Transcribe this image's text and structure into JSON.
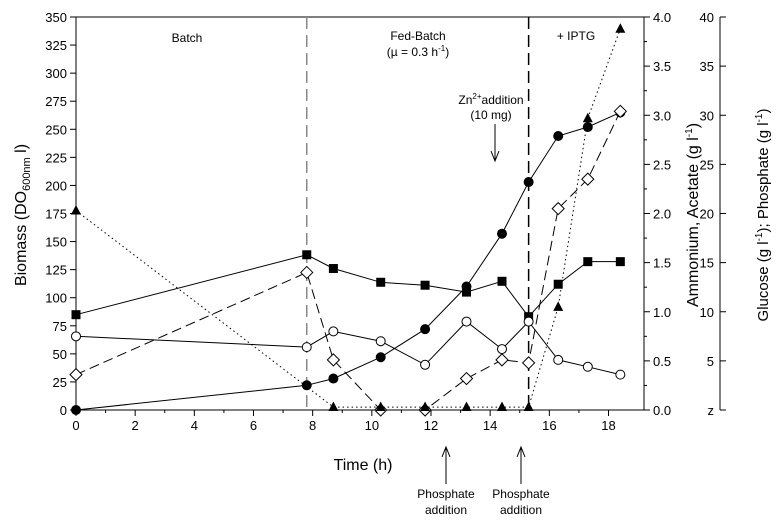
{
  "chart_data": {
    "type": "line",
    "xlabel": "Time (h)",
    "x_ticks": [
      "0",
      "2",
      "4",
      "6",
      "8",
      "10",
      "12",
      "14",
      "16",
      "18"
    ],
    "xlim": [
      0,
      19.2
    ],
    "y_left": {
      "label_main": "Biomass (DO",
      "label_sub": "600nm",
      "label_end": " l)",
      "lim": [
        0,
        350
      ],
      "ticks": [
        "0",
        "25",
        "50",
        "75",
        "100",
        "125",
        "150",
        "175",
        "200",
        "225",
        "250",
        "275",
        "300",
        "325",
        "350"
      ]
    },
    "y_right1": {
      "label": "Ammonium, Acetate (g l",
      "label_sup": "-1",
      "label_end": ")",
      "lim": [
        0,
        4.0
      ],
      "ticks": [
        "0.0",
        "0.5",
        "1.0",
        "1.5",
        "2.0",
        "2.5",
        "3.0",
        "3.5",
        "4.0"
      ]
    },
    "y_right2": {
      "label": "Glucose (g l",
      "label_sup": "-1",
      "label_mid": "); Phosphate (g l",
      "label_sup2": "-1",
      "label_end": ")",
      "lim": [
        0,
        40
      ],
      "ticks": [
        "z",
        "5",
        "10",
        "15",
        "20",
        "25",
        "30",
        "35",
        "40"
      ]
    },
    "phase_lines_x": [
      7.8,
      15.3
    ],
    "phases": [
      {
        "label": "Batch",
        "sub": ""
      },
      {
        "label": "Fed-Batch",
        "sub": "(µ = 0.3 h",
        "sub_sup": "-1",
        "sub_end": ")"
      },
      {
        "label": "+ IPTG",
        "sub": ""
      }
    ],
    "annotations": {
      "zn_line1": "Zn",
      "zn_sup": "2+",
      "zn_line1_end": "addition",
      "zn_line2": "(10 mg)",
      "zn_x": 14.3,
      "phosphate_label_1": "Phosphate",
      "phosphate_label_2": "addition",
      "phosphate_x": [
        11.8,
        15.3
      ]
    },
    "series": [
      {
        "marker": "filled-circle",
        "line": "solid",
        "axis": "left",
        "x": [
          0,
          7.8,
          8.7,
          10.3,
          11.8,
          13.2,
          14.4,
          15.3,
          16.3,
          17.3,
          18.4
        ],
        "y": [
          0,
          22,
          28,
          47,
          72,
          110,
          157,
          203,
          244,
          252,
          265
        ]
      },
      {
        "marker": "filled-square",
        "line": "solid",
        "axis": "right1",
        "x": [
          0,
          7.8,
          8.7,
          10.3,
          11.8,
          13.2,
          14.4,
          15.3,
          16.3,
          17.3,
          18.4
        ],
        "y": [
          0.97,
          1.58,
          1.44,
          1.3,
          1.27,
          1.2,
          1.31,
          0.95,
          1.28,
          1.51,
          1.51
        ]
      },
      {
        "marker": "open-circle",
        "line": "solid",
        "axis": "right1",
        "x": [
          0,
          7.8,
          8.7,
          10.3,
          11.8,
          13.2,
          14.4,
          15.3,
          16.3,
          17.3,
          18.4
        ],
        "y": [
          0.75,
          0.64,
          0.8,
          0.7,
          0.46,
          0.9,
          0.62,
          0.9,
          0.51,
          0.44,
          0.36
        ]
      },
      {
        "marker": "open-diamond",
        "line": "dashed",
        "axis": "right1",
        "x": [
          0,
          7.8,
          8.7,
          10.3,
          11.8,
          13.2,
          14.4,
          15.3,
          16.3,
          17.3,
          18.4
        ],
        "y": [
          0.36,
          1.4,
          0.51,
          0.0,
          0.0,
          0.32,
          0.51,
          0.48,
          2.05,
          2.35,
          3.04
        ]
      },
      {
        "marker": "filled-triangle",
        "line": "dotted",
        "axis": "right2",
        "x": [
          0,
          8.7,
          10.3,
          11.8,
          13.2,
          14.4,
          15.3,
          16.3,
          17.3,
          18.4
        ],
        "y": [
          20.3,
          0.3,
          0.3,
          0.3,
          0.3,
          0.3,
          0.3,
          10.5,
          29.7,
          38.8
        ]
      }
    ]
  }
}
